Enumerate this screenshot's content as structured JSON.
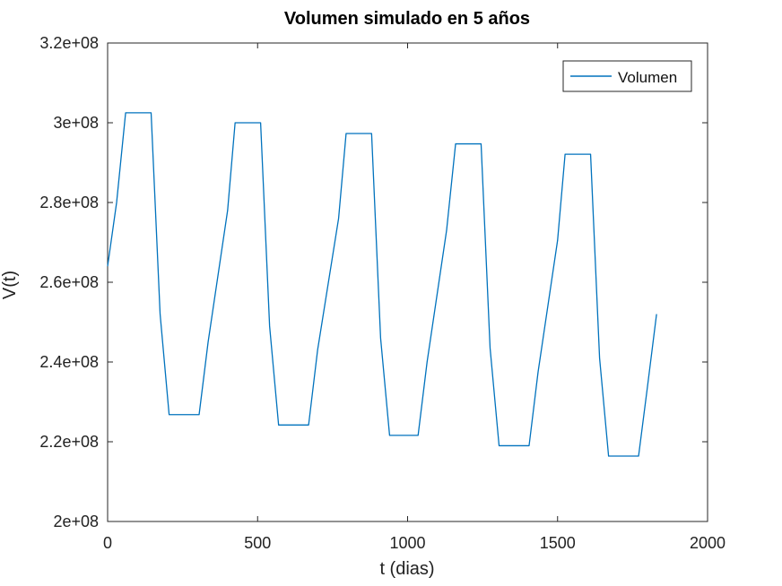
{
  "chart_data": {
    "type": "line",
    "title": "Volumen simulado en 5 años",
    "xlabel": "t (dias)",
    "ylabel": "V(t)",
    "xlim": [
      0,
      2000
    ],
    "ylim": [
      200000000,
      320000000
    ],
    "x_ticks": [
      0,
      500,
      1000,
      1500,
      2000
    ],
    "x_tick_labels": [
      "0",
      "500",
      "1000",
      "1500",
      "2000"
    ],
    "y_ticks": [
      200000000,
      220000000,
      240000000,
      260000000,
      280000000,
      300000000,
      320000000
    ],
    "y_tick_labels": [
      "2e+08",
      "2.2e+08",
      "2.4e+08",
      "2.6e+08",
      "2.8e+08",
      "3e+08",
      "3.2e+08"
    ],
    "grid": false,
    "legend": "top-right",
    "series": [
      {
        "name": "Volumen",
        "color": "#0072BD",
        "x": [
          0,
          30,
          60,
          145,
          175,
          205,
          305,
          335,
          400,
          425,
          510,
          540,
          570,
          670,
          700,
          770,
          795,
          880,
          910,
          940,
          1035,
          1065,
          1130,
          1160,
          1245,
          1275,
          1305,
          1405,
          1435,
          1500,
          1525,
          1610,
          1640,
          1670,
          1770,
          1800,
          1830
        ],
        "y": [
          264000000,
          280000000,
          302500000,
          302500000,
          252000000,
          226800000,
          226800000,
          245000000,
          278000000,
          300000000,
          300000000,
          249000000,
          224200000,
          224200000,
          243000000,
          276000000,
          297300000,
          297300000,
          246000000,
          221600000,
          221600000,
          240000000,
          273000000,
          294700000,
          294700000,
          243500000,
          219000000,
          219000000,
          237500000,
          270500000,
          292100000,
          292100000,
          241000000,
          216400000,
          216400000,
          234000000,
          252000000
        ]
      }
    ]
  }
}
